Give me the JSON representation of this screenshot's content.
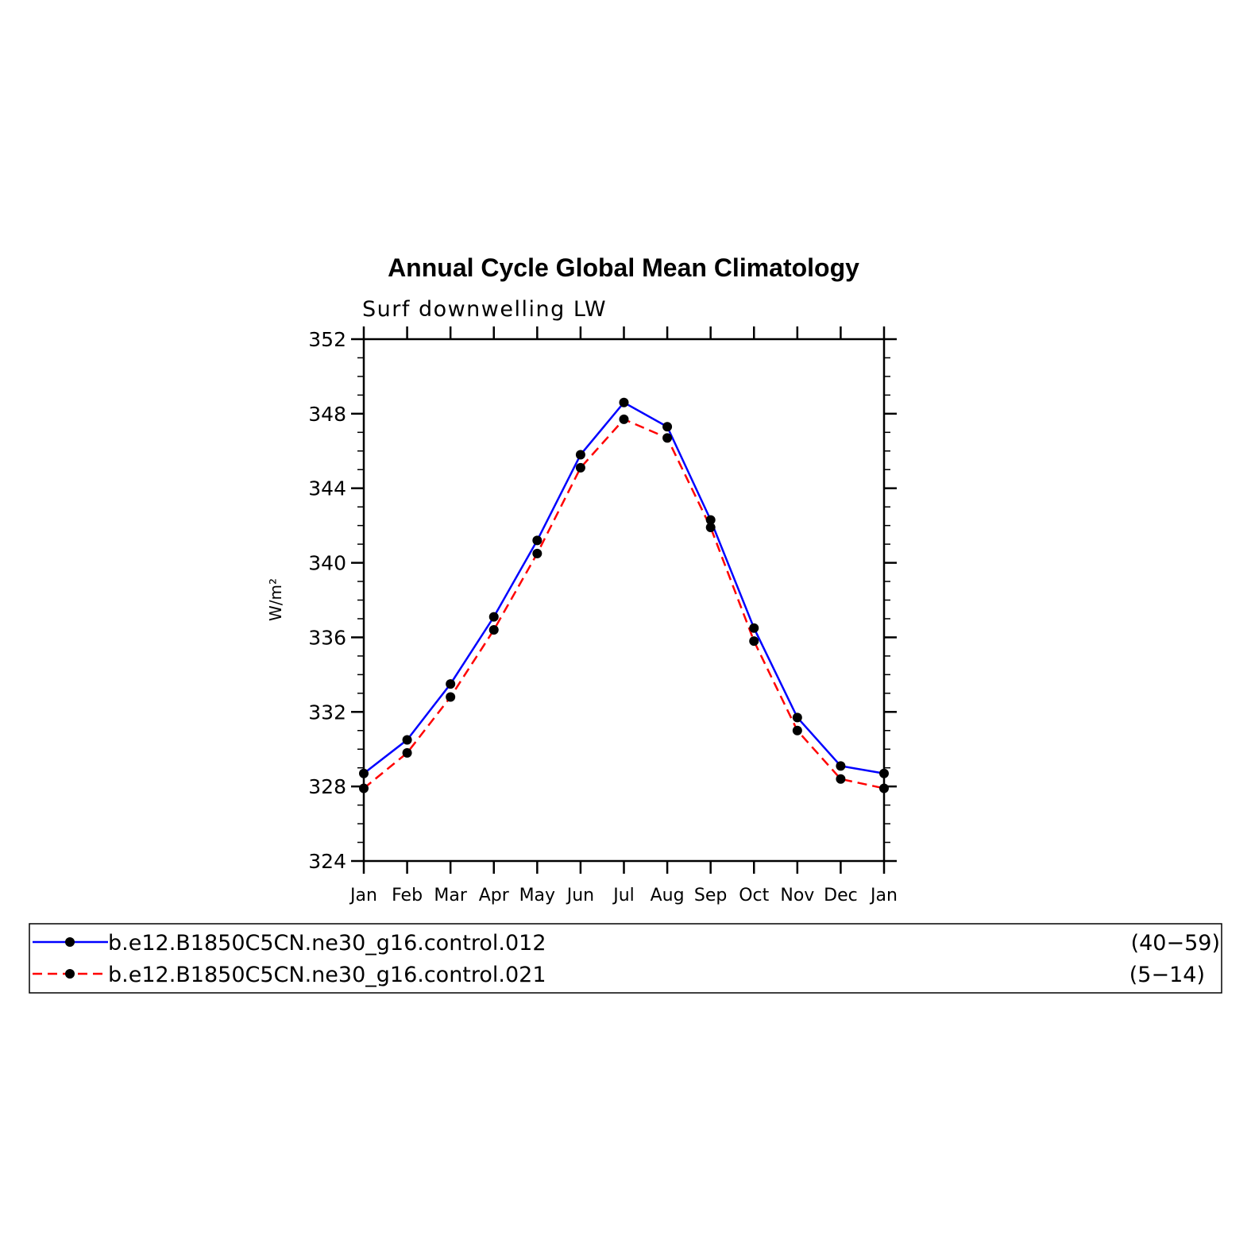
{
  "chart_data": {
    "type": "line",
    "title": "Annual Cycle Global Mean Climatology",
    "subtitle": "Surf downwelling LW",
    "ylabel": "W/m²",
    "xlabel": "",
    "categories": [
      "Jan",
      "Feb",
      "Mar",
      "Apr",
      "May",
      "Jun",
      "Jul",
      "Aug",
      "Sep",
      "Oct",
      "Nov",
      "Dec",
      "Jan"
    ],
    "ylim": [
      324,
      352
    ],
    "yticks": [
      "324",
      "328",
      "332",
      "336",
      "340",
      "344",
      "348",
      "352"
    ],
    "grid": false,
    "legend_position": "bottom",
    "series": [
      {
        "name": "b.e12.B1850C5CN.ne30_g16.control.012",
        "period": "(40−59)",
        "color": "#0000ff",
        "dash": "solid",
        "values": [
          328.7,
          330.5,
          333.5,
          337.1,
          341.2,
          345.8,
          348.6,
          347.3,
          342.3,
          336.5,
          331.7,
          329.1,
          328.7
        ]
      },
      {
        "name": "b.e12.B1850C5CN.ne30_g16.control.021",
        "period": "(5−14)",
        "color": "#ff0000",
        "dash": "dashed",
        "values": [
          327.9,
          329.8,
          332.8,
          336.4,
          340.5,
          345.1,
          347.7,
          346.7,
          341.9,
          335.8,
          331.0,
          328.4,
          327.9
        ]
      }
    ]
  }
}
